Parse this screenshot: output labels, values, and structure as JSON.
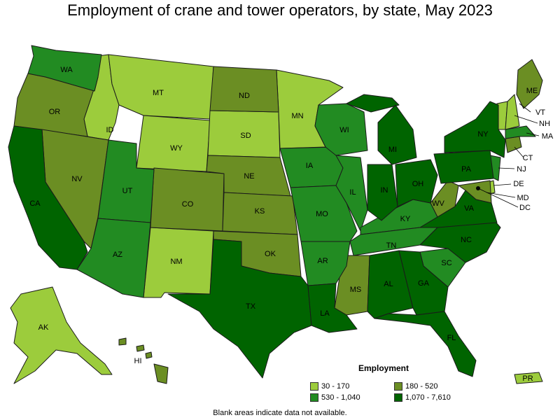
{
  "title": "Employment of crane and tower operators, by state, May 2023",
  "legend": {
    "title": "Employment",
    "items": [
      {
        "label": "30 - 170",
        "color": "#9ccc3c"
      },
      {
        "label": "180 - 520",
        "color": "#6b8e23"
      },
      {
        "label": "530 - 1,040",
        "color": "#228b22"
      },
      {
        "label": "1,070 - 7,610",
        "color": "#006400"
      }
    ]
  },
  "footnote": "Blank areas indicate data not available.",
  "states": {
    "WA": "WA",
    "OR": "OR",
    "CA": "CA",
    "NV": "NV",
    "ID": "ID",
    "MT": "MT",
    "WY": "WY",
    "UT": "UT",
    "AZ": "AZ",
    "CO": "CO",
    "NM": "NM",
    "ND": "ND",
    "SD": "SD",
    "NE": "NE",
    "KS": "KS",
    "OK": "OK",
    "TX": "TX",
    "MN": "MN",
    "IA": "IA",
    "MO": "MO",
    "AR": "AR",
    "LA": "LA",
    "WI": "WI",
    "IL": "IL",
    "MI": "MI",
    "IN": "IN",
    "OH": "OH",
    "KY": "KY",
    "TN": "TN",
    "MS": "MS",
    "AL": "AL",
    "GA": "GA",
    "FL": "FL",
    "SC": "SC",
    "NC": "NC",
    "VA": "VA",
    "WV": "WV",
    "PA": "PA",
    "NY": "NY",
    "ME": "ME",
    "VT": "VT",
    "NH": "NH",
    "MA": "MA",
    "CT": "CT",
    "NJ": "NJ",
    "DE": "DE",
    "MD": "MD",
    "DC": "DC",
    "AK": "AK",
    "HI": "HI",
    "PR": "PR"
  }
}
